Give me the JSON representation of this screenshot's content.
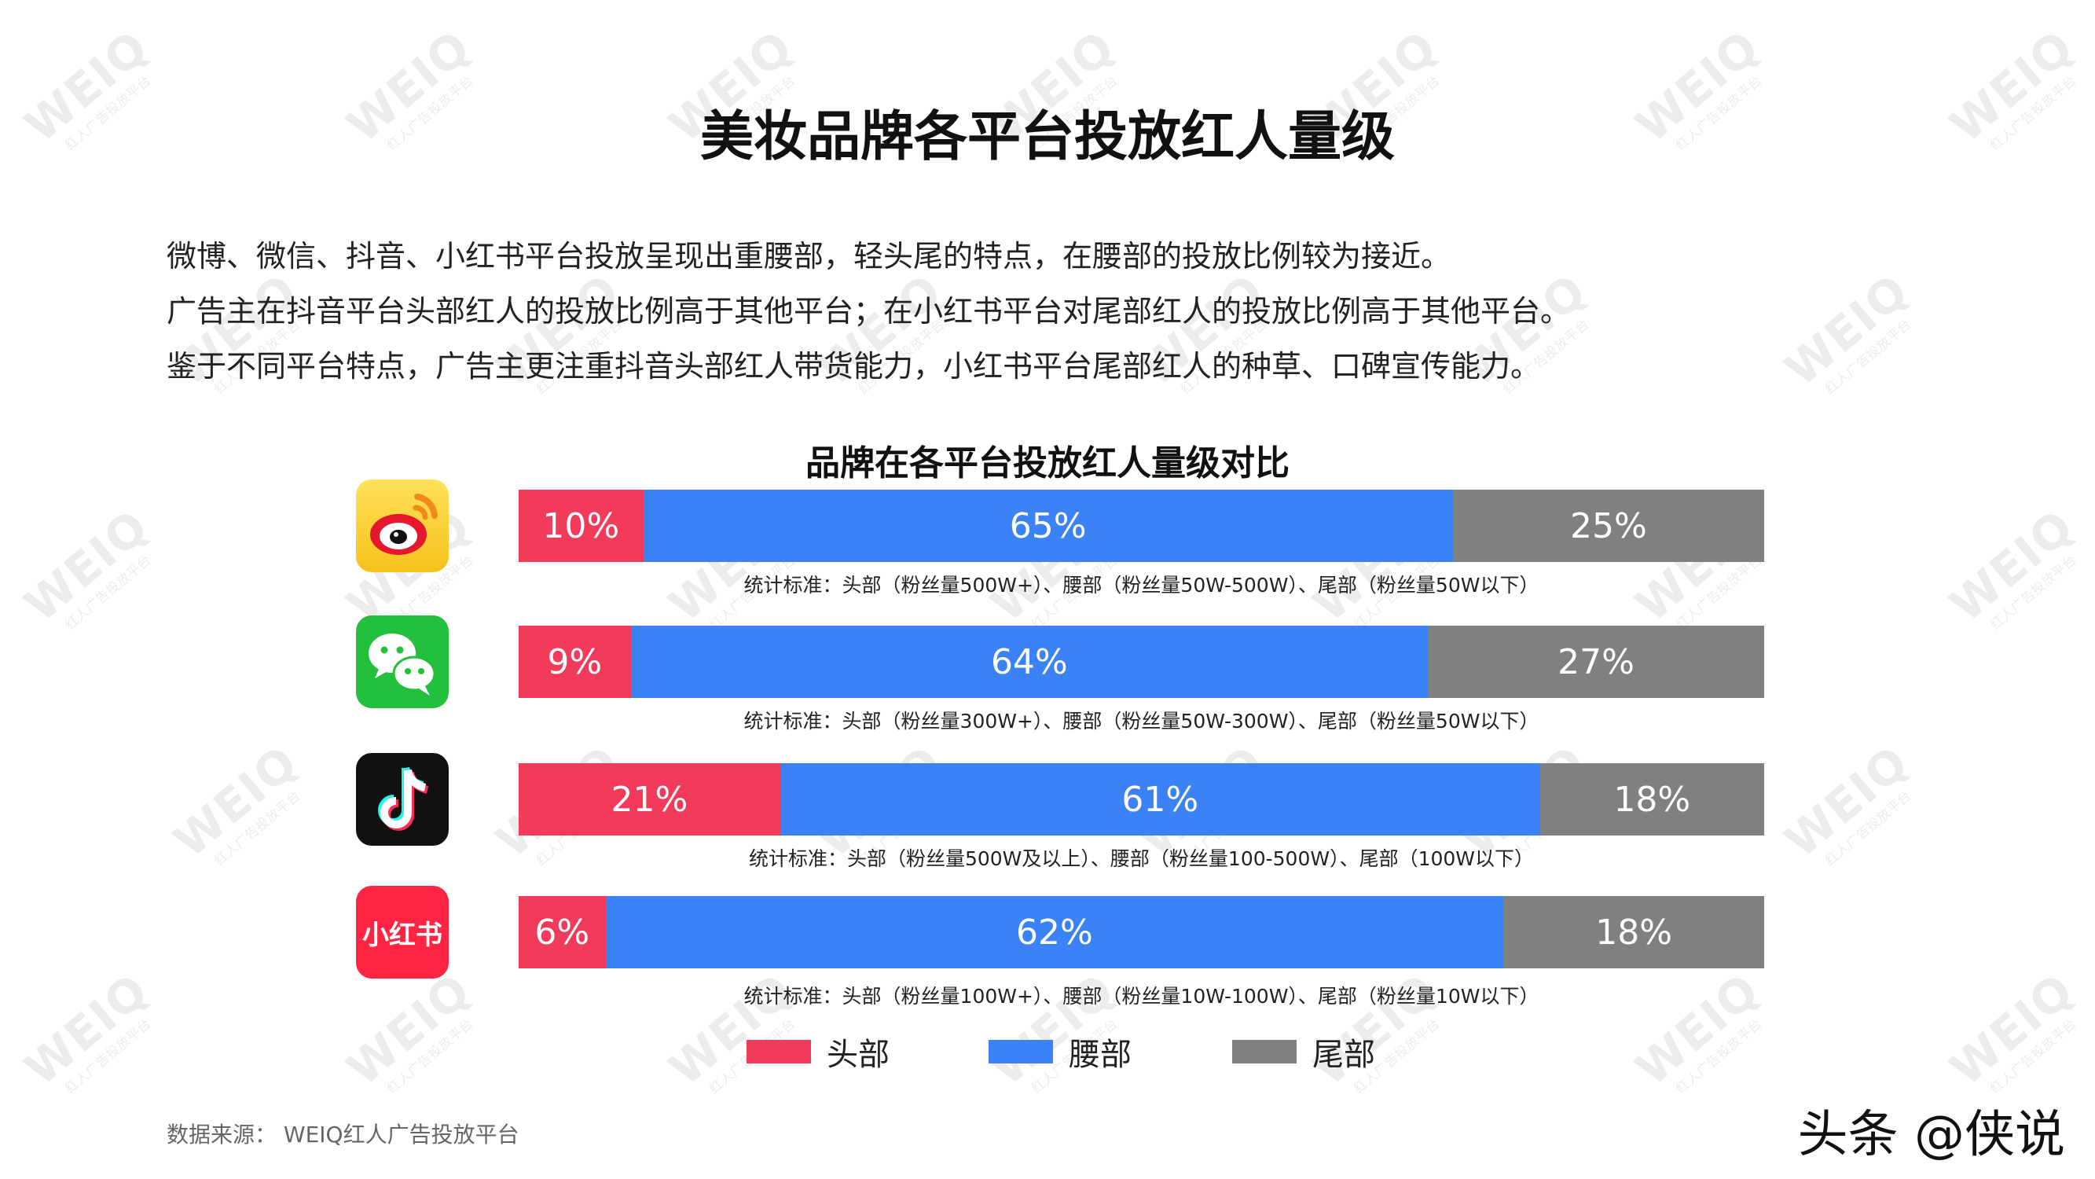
{
  "title": "美妆品牌各平台投放红人量级",
  "intro": [
    "微博、微信、抖音、小红书平台投放呈现出重腰部，轻头尾的特点，在腰部的投放比例较为接近。",
    "广告主在抖音平台头部红人的投放比例高于其他平台；在小红书平台对尾部红人的投放比例高于其他平台。",
    "鉴于不同平台特点，广告主更注重抖音头部红人带货能力，小红书平台尾部红人的种草、口碑宣传能力。"
  ],
  "watermark": {
    "main": "WEIQ",
    "sub": "红人广告投放平台"
  },
  "colors": {
    "head": "#f23b5a",
    "waist": "#3b82f6",
    "tail": "#808080"
  },
  "platforms": [
    {
      "icon": "weibo-icon",
      "criteria": "统计标准：头部（粉丝量500W+）、腰部（粉丝量50W-500W）、尾部（粉丝量50W以下）"
    },
    {
      "icon": "wechat-icon",
      "criteria": "统计标准：头部（粉丝量300W+）、腰部（粉丝量50W-300W）、尾部（粉丝量50W以下）"
    },
    {
      "icon": "douyin-icon",
      "criteria": "统计标准：头部（粉丝量500W及以上）、腰部（粉丝量100-500W）、尾部（100W以下）"
    },
    {
      "icon": "xiaohongshu-icon",
      "icon_text": "小红书",
      "criteria": "统计标准：头部（粉丝量100W+）、腰部（粉丝量10W-100W）、尾部（粉丝量10W以下）"
    }
  ],
  "chart_data": {
    "type": "bar",
    "orientation": "horizontal",
    "stacked": "percent",
    "title": "品牌在各平台投放红人量级对比",
    "categories": [
      "微博",
      "微信",
      "抖音",
      "小红书"
    ],
    "series": [
      {
        "name": "头部",
        "color": "#f23b5a",
        "values": [
          10,
          9,
          21,
          6
        ],
        "labels": [
          "10%",
          "9%",
          "21%",
          "6%"
        ]
      },
      {
        "name": "腰部",
        "color": "#3b82f6",
        "values": [
          65,
          64,
          61,
          62
        ],
        "labels": [
          "65%",
          "64%",
          "61%",
          "62%"
        ]
      },
      {
        "name": "尾部",
        "color": "#808080",
        "values": [
          25,
          27,
          18,
          18
        ],
        "labels": [
          "25%",
          "27%",
          "18%",
          "18%"
        ]
      }
    ],
    "xlim": [
      0,
      100
    ],
    "grid": false,
    "legend": "bottom"
  },
  "footer": {
    "source": "数据来源：  WEIQ红人广告投放平台",
    "brand": "头条 @侠说"
  }
}
